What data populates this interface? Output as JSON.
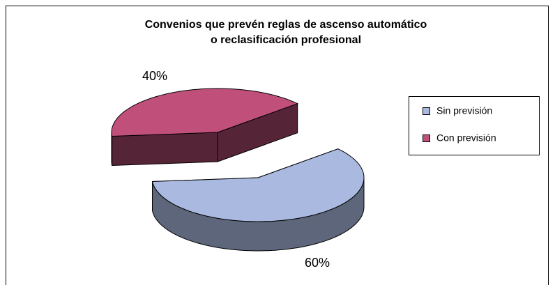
{
  "chart_data": {
    "type": "pie",
    "title": [
      "Convenios que prevén reglas de ascenso automático",
      "o reclasificación profesional"
    ],
    "categories": [
      "Sin previsión",
      "Con previsión"
    ],
    "values": [
      60,
      40
    ],
    "value_labels": [
      "60%",
      "40%"
    ],
    "colors": [
      "#a9b9e0",
      "#c0507a"
    ],
    "three_d": true,
    "exploded": true,
    "legend": "right"
  }
}
